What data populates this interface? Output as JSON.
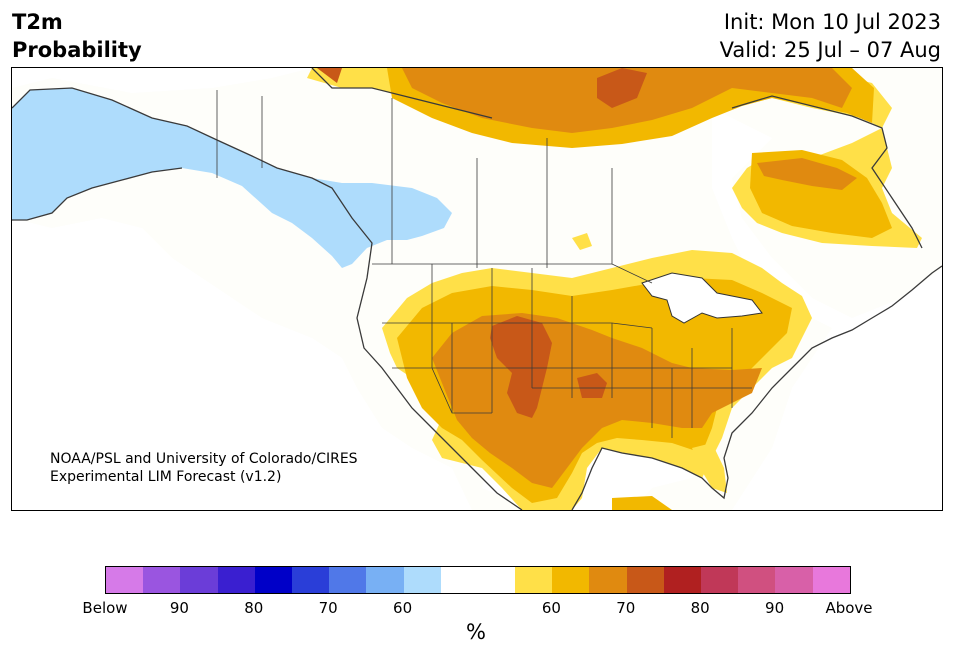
{
  "header": {
    "title_line1": "T2m",
    "title_line2": "Probability",
    "init": "Init: Mon 10 Jul 2023",
    "valid": "Valid: 25 Jul – 07 Aug"
  },
  "map": {
    "credit_line1": "NOAA/PSL and University of Colorado/CIRES",
    "credit_line2": "Experimental LIM Forecast (v1.2)"
  },
  "colorbar": {
    "unit": "%",
    "colors": [
      "#d67ae8",
      "#9a55e0",
      "#6b3dd8",
      "#3a1fd0",
      "#0000c8",
      "#2a3ed8",
      "#5078e8",
      "#78b0f4",
      "#aedcfc",
      "#ffffff",
      "#ffffff",
      "#ffe048",
      "#f2b800",
      "#e08a10",
      "#c85818",
      "#b02020",
      "#c03858",
      "#d05080",
      "#d860a8",
      "#e878dc"
    ],
    "tick_labels": [
      "Below",
      "90",
      "80",
      "70",
      "60",
      "60",
      "70",
      "80",
      "90",
      "Above"
    ]
  },
  "legend_colors": {
    "below_60": "#aedcfc",
    "above_60": "#ffe048",
    "above_65": "#f2b800",
    "above_70": "#e08a10",
    "above_75": "#c85818"
  }
}
